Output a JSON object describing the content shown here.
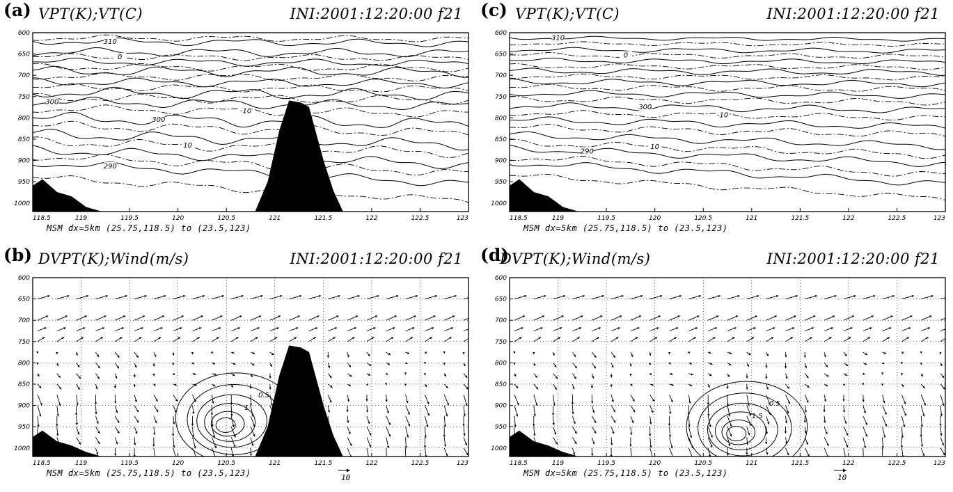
{
  "chart_data": [
    {
      "id": "a",
      "type": "contour",
      "panel_label": "(a)",
      "title_left": "VPT(K);VT(C)",
      "title_right": "INI:2001:12:20:00 f21",
      "caption": "MSM dx=5km (25.75,118.5) to (23.5,123)",
      "xlim": [
        118.5,
        123
      ],
      "ylim": [
        1020,
        600
      ],
      "x_ticks": [
        "118.5",
        "119",
        "119.5",
        "120",
        "120.5",
        "121",
        "121.5",
        "122",
        "122.5",
        "123"
      ],
      "y_ticks": [
        "600",
        "650",
        "700",
        "750",
        "800",
        "850",
        "900",
        "950",
        "1000"
      ],
      "terrain": [
        [
          118.5,
          1020
        ],
        [
          118.5,
          960
        ],
        [
          118.6,
          945
        ],
        [
          118.75,
          975
        ],
        [
          118.9,
          985
        ],
        [
          119.05,
          1010
        ],
        [
          119.2,
          1020
        ],
        [
          120.8,
          1020
        ],
        [
          120.93,
          950
        ],
        [
          121.05,
          830
        ],
        [
          121.15,
          760
        ],
        [
          121.27,
          765
        ],
        [
          121.35,
          775
        ],
        [
          121.5,
          900
        ],
        [
          121.6,
          970
        ],
        [
          121.7,
          1020
        ]
      ],
      "solid_lines": [
        {
          "p0": 620,
          "amp": 6,
          "slope": 5,
          "label": "310",
          "label_x": 119.3
        },
        {
          "p0": 645,
          "amp": 7,
          "slope": 3
        },
        {
          "p0": 668,
          "amp": 6,
          "slope": 4
        },
        {
          "p0": 690,
          "amp": 8,
          "slope": 3
        },
        {
          "p0": 715,
          "amp": 7,
          "slope": 5
        },
        {
          "p0": 740,
          "amp": 9,
          "slope": 6
        },
        {
          "p0": 762,
          "amp": 8,
          "slope": 10,
          "label": "300",
          "label_x": 118.7
        },
        {
          "p0": 800,
          "amp": 10,
          "slope": 15,
          "label": "300",
          "label_x": 119.8
        },
        {
          "p0": 838,
          "amp": 9,
          "slope": 25
        },
        {
          "p0": 875,
          "amp": 8,
          "slope": 35
        },
        {
          "p0": 905,
          "amp": 7,
          "slope": 50,
          "label": "290",
          "label_x": 119.3
        }
      ],
      "dashed_lines": [
        {
          "p0": 612,
          "amp": 5,
          "slope": 3
        },
        {
          "p0": 656,
          "amp": 5,
          "slope": 4,
          "label": "0",
          "label_x": 119.4
        },
        {
          "p0": 680,
          "amp": 6,
          "slope": 3
        },
        {
          "p0": 702,
          "amp": 6,
          "slope": 4
        },
        {
          "p0": 728,
          "amp": 6,
          "slope": 5
        },
        {
          "p0": 752,
          "amp": 7,
          "slope": 7
        },
        {
          "p0": 778,
          "amp": 7,
          "slope": 12,
          "label": "-10",
          "label_x": 120.7
        },
        {
          "p0": 818,
          "amp": 8,
          "slope": 18
        },
        {
          "p0": 855,
          "amp": 8,
          "slope": 28,
          "label": "10",
          "label_x": 120.1
        },
        {
          "p0": 890,
          "amp": 7,
          "slope": 40
        },
        {
          "p0": 940,
          "amp": 6,
          "slope": 55
        }
      ]
    },
    {
      "id": "b",
      "type": "vector",
      "panel_label": "(b)",
      "title_left": "DVPT(K);Wind(m/s)",
      "title_right": "INI:2001:12:20:00 f21",
      "caption": "MSM dx=5km (25.75,118.5) to (23.5,123)",
      "ref_vector_label": "10",
      "xlim": [
        118.5,
        123
      ],
      "ylim": [
        1020,
        600
      ],
      "x_ticks": [
        "118.5",
        "119",
        "119.5",
        "120",
        "120.5",
        "121",
        "121.5",
        "122",
        "122.5",
        "123"
      ],
      "y_ticks": [
        "600",
        "650",
        "700",
        "750",
        "800",
        "850",
        "900",
        "950",
        "1000"
      ],
      "terrain": [
        [
          118.5,
          1020
        ],
        [
          118.5,
          975
        ],
        [
          118.6,
          960
        ],
        [
          118.75,
          985
        ],
        [
          118.9,
          995
        ],
        [
          119.05,
          1010
        ],
        [
          119.2,
          1020
        ],
        [
          120.8,
          1020
        ],
        [
          120.93,
          950
        ],
        [
          121.05,
          830
        ],
        [
          121.15,
          760
        ],
        [
          121.27,
          765
        ],
        [
          121.35,
          775
        ],
        [
          121.5,
          900
        ],
        [
          121.6,
          970
        ],
        [
          121.7,
          1020
        ]
      ],
      "vector_levels": [
        650,
        700,
        725,
        750,
        775,
        800,
        825,
        850,
        875,
        900,
        925,
        950,
        975,
        1000
      ],
      "contour_center": [
        120.6,
        930
      ],
      "contour_levels": [
        "0.5",
        "1"
      ]
    },
    {
      "id": "c",
      "type": "contour",
      "panel_label": "(c)",
      "title_left": "VPT(K);VT(C)",
      "title_right": "INI:2001:12:20:00 f21",
      "caption": "MSM dx=5km (25.75,118.5) to (23.5,123)",
      "xlim": [
        118.5,
        123
      ],
      "ylim": [
        1020,
        600
      ],
      "x_ticks": [
        "118.5",
        "119",
        "119.5",
        "120",
        "120.5",
        "121",
        "121.5",
        "122",
        "122.5",
        "123"
      ],
      "y_ticks": [
        "600",
        "650",
        "700",
        "750",
        "800",
        "850",
        "900",
        "950",
        "1000"
      ],
      "terrain": [
        [
          118.5,
          1020
        ],
        [
          118.5,
          960
        ],
        [
          118.6,
          945
        ],
        [
          118.75,
          975
        ],
        [
          118.9,
          985
        ],
        [
          119.05,
          1010
        ],
        [
          119.2,
          1020
        ]
      ],
      "solid_lines": [
        {
          "p0": 612,
          "amp": 3,
          "slope": 4,
          "label": "310",
          "label_x": 119.0
        },
        {
          "p0": 640,
          "amp": 4,
          "slope": 3
        },
        {
          "p0": 665,
          "amp": 4,
          "slope": 4
        },
        {
          "p0": 690,
          "amp": 5,
          "slope": 3
        },
        {
          "p0": 715,
          "amp": 5,
          "slope": 5
        },
        {
          "p0": 742,
          "amp": 5,
          "slope": 6
        },
        {
          "p0": 772,
          "amp": 6,
          "slope": 10,
          "label": "300",
          "label_x": 119.9
        },
        {
          "p0": 805,
          "amp": 6,
          "slope": 16
        },
        {
          "p0": 840,
          "amp": 6,
          "slope": 26
        },
        {
          "p0": 872,
          "amp": 6,
          "slope": 36,
          "label": "290",
          "label_x": 119.3
        },
        {
          "p0": 905,
          "amp": 6,
          "slope": 50
        }
      ],
      "dashed_lines": [
        {
          "p0": 625,
          "amp": 3,
          "slope": 3
        },
        {
          "p0": 652,
          "amp": 4,
          "slope": 4,
          "label": "0",
          "label_x": 119.7
        },
        {
          "p0": 678,
          "amp": 4,
          "slope": 3
        },
        {
          "p0": 702,
          "amp": 4,
          "slope": 4
        },
        {
          "p0": 728,
          "amp": 5,
          "slope": 5
        },
        {
          "p0": 756,
          "amp": 5,
          "slope": 7
        },
        {
          "p0": 788,
          "amp": 5,
          "slope": 12,
          "label": "-10",
          "label_x": 120.7
        },
        {
          "p0": 822,
          "amp": 6,
          "slope": 18
        },
        {
          "p0": 858,
          "amp": 6,
          "slope": 30,
          "label": "10",
          "label_x": 120.0
        },
        {
          "p0": 892,
          "amp": 6,
          "slope": 42
        },
        {
          "p0": 935,
          "amp": 5,
          "slope": 55
        }
      ]
    },
    {
      "id": "d",
      "type": "vector",
      "panel_label": "(d)",
      "title_left": "DVPT(K);Wind(m/s)",
      "title_right": "INI:2001:12:20:00 f21",
      "caption": "MSM dx=5km (25.75,118.5) to (23.5,123)",
      "ref_vector_label": "10",
      "xlim": [
        118.5,
        123
      ],
      "ylim": [
        1020,
        600
      ],
      "x_ticks": [
        "118.5",
        "119",
        "119.5",
        "120",
        "120.5",
        "121",
        "121.5",
        "122",
        "122.5",
        "123"
      ],
      "y_ticks": [
        "600",
        "650",
        "700",
        "750",
        "800",
        "850",
        "900",
        "950",
        "1000"
      ],
      "terrain": [
        [
          118.5,
          1020
        ],
        [
          118.5,
          975
        ],
        [
          118.6,
          960
        ],
        [
          118.75,
          985
        ],
        [
          118.9,
          995
        ],
        [
          119.05,
          1010
        ],
        [
          119.2,
          1020
        ]
      ],
      "vector_levels": [
        650,
        700,
        725,
        750,
        775,
        800,
        825,
        850,
        875,
        900,
        925,
        950,
        975,
        1000
      ],
      "contour_center": [
        120.95,
        950
      ],
      "contour_levels": [
        "0.5",
        "1.5"
      ]
    }
  ]
}
